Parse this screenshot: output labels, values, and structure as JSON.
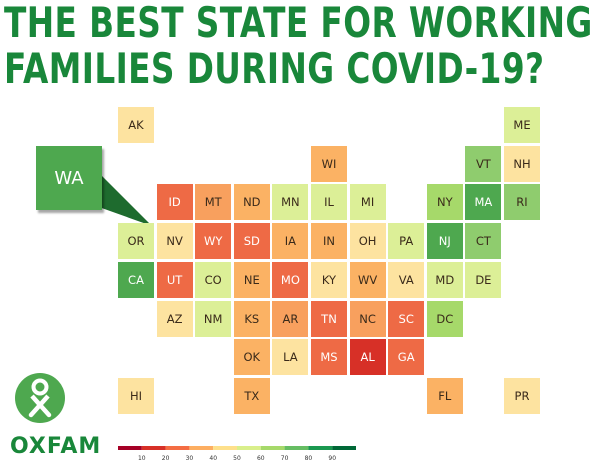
{
  "title": {
    "line1": "THE BEST STATE FOR WORKING",
    "line2": "FAMILIES DURING COVID-19?"
  },
  "callout": {
    "label": "WA",
    "color": "#4ea84f"
  },
  "logo": {
    "wordmark": "OXFAM",
    "brand_color": "#19873a"
  },
  "legend": {
    "ticks": [
      "10",
      "20",
      "30",
      "40",
      "50",
      "60",
      "70",
      "80",
      "90"
    ],
    "colors": [
      "#a50026",
      "#d73027",
      "#f46d43",
      "#fdae61",
      "#fee08b",
      "#d9ef8b",
      "#a6d96a",
      "#66bd63",
      "#1a9850",
      "#006837"
    ]
  },
  "states": [
    {
      "abbr": "AK",
      "row": 0,
      "col": 0,
      "color": "#fde3a0"
    },
    {
      "abbr": "ME",
      "row": 0,
      "col": 10,
      "color": "#dcef97"
    },
    {
      "abbr": "WI",
      "row": 1,
      "col": 5,
      "color": "#fbb264"
    },
    {
      "abbr": "VT",
      "row": 1,
      "col": 9,
      "color": "#8fcc6e"
    },
    {
      "abbr": "NH",
      "row": 1,
      "col": 10,
      "color": "#fde3a0"
    },
    {
      "abbr": "ID",
      "row": 2,
      "col": 1,
      "color": "#ee6a45"
    },
    {
      "abbr": "MT",
      "row": 2,
      "col": 2,
      "color": "#f8a05e"
    },
    {
      "abbr": "ND",
      "row": 2,
      "col": 3,
      "color": "#fbb264"
    },
    {
      "abbr": "MN",
      "row": 2,
      "col": 4,
      "color": "#dcef97"
    },
    {
      "abbr": "IL",
      "row": 2,
      "col": 5,
      "color": "#dcef97"
    },
    {
      "abbr": "MI",
      "row": 2,
      "col": 6,
      "color": "#dcef97"
    },
    {
      "abbr": "NY",
      "row": 2,
      "col": 8,
      "color": "#a6d96a"
    },
    {
      "abbr": "MA",
      "row": 2,
      "col": 9,
      "color": "#4ea84f"
    },
    {
      "abbr": "RI",
      "row": 2,
      "col": 10,
      "color": "#8fcc6e"
    },
    {
      "abbr": "OR",
      "row": 3,
      "col": 0,
      "color": "#dcef97"
    },
    {
      "abbr": "NV",
      "row": 3,
      "col": 1,
      "color": "#fde3a0"
    },
    {
      "abbr": "WY",
      "row": 3,
      "col": 2,
      "color": "#ee6a45"
    },
    {
      "abbr": "SD",
      "row": 3,
      "col": 3,
      "color": "#ee6a45"
    },
    {
      "abbr": "IA",
      "row": 3,
      "col": 4,
      "color": "#fbb264"
    },
    {
      "abbr": "IN",
      "row": 3,
      "col": 5,
      "color": "#fbb264"
    },
    {
      "abbr": "OH",
      "row": 3,
      "col": 6,
      "color": "#fde3a0"
    },
    {
      "abbr": "PA",
      "row": 3,
      "col": 7,
      "color": "#dcef97"
    },
    {
      "abbr": "NJ",
      "row": 3,
      "col": 8,
      "color": "#4ea84f"
    },
    {
      "abbr": "CT",
      "row": 3,
      "col": 9,
      "color": "#8fcc6e"
    },
    {
      "abbr": "CA",
      "row": 4,
      "col": 0,
      "color": "#4ea84f"
    },
    {
      "abbr": "UT",
      "row": 4,
      "col": 1,
      "color": "#ee6a45"
    },
    {
      "abbr": "CO",
      "row": 4,
      "col": 2,
      "color": "#dcef97"
    },
    {
      "abbr": "NE",
      "row": 4,
      "col": 3,
      "color": "#fbb264"
    },
    {
      "abbr": "MO",
      "row": 4,
      "col": 4,
      "color": "#ee6a45"
    },
    {
      "abbr": "KY",
      "row": 4,
      "col": 5,
      "color": "#fde3a0"
    },
    {
      "abbr": "WV",
      "row": 4,
      "col": 6,
      "color": "#fbb264"
    },
    {
      "abbr": "VA",
      "row": 4,
      "col": 7,
      "color": "#fde3a0"
    },
    {
      "abbr": "MD",
      "row": 4,
      "col": 8,
      "color": "#dcef97"
    },
    {
      "abbr": "DE",
      "row": 4,
      "col": 9,
      "color": "#dcef97"
    },
    {
      "abbr": "AZ",
      "row": 5,
      "col": 1,
      "color": "#fde3a0"
    },
    {
      "abbr": "NM",
      "row": 5,
      "col": 2,
      "color": "#dcef97"
    },
    {
      "abbr": "KS",
      "row": 5,
      "col": 3,
      "color": "#fbb264"
    },
    {
      "abbr": "AR",
      "row": 5,
      "col": 4,
      "color": "#f8a05e"
    },
    {
      "abbr": "TN",
      "row": 5,
      "col": 5,
      "color": "#ee6a45"
    },
    {
      "abbr": "NC",
      "row": 5,
      "col": 6,
      "color": "#f8a05e"
    },
    {
      "abbr": "SC",
      "row": 5,
      "col": 7,
      "color": "#ee6a45"
    },
    {
      "abbr": "DC",
      "row": 5,
      "col": 8,
      "color": "#a6d96a"
    },
    {
      "abbr": "OK",
      "row": 6,
      "col": 3,
      "color": "#fbb264"
    },
    {
      "abbr": "LA",
      "row": 6,
      "col": 4,
      "color": "#fde3a0"
    },
    {
      "abbr": "MS",
      "row": 6,
      "col": 5,
      "color": "#ee6a45"
    },
    {
      "abbr": "AL",
      "row": 6,
      "col": 6,
      "color": "#d73027"
    },
    {
      "abbr": "GA",
      "row": 6,
      "col": 7,
      "color": "#ee6a45"
    },
    {
      "abbr": "HI",
      "row": 7,
      "col": 0,
      "color": "#fde3a0"
    },
    {
      "abbr": "TX",
      "row": 7,
      "col": 3,
      "color": "#fbb264"
    },
    {
      "abbr": "FL",
      "row": 7,
      "col": 8,
      "color": "#fbb264"
    },
    {
      "abbr": "PR",
      "row": 7,
      "col": 10,
      "color": "#fde3a0"
    }
  ]
}
